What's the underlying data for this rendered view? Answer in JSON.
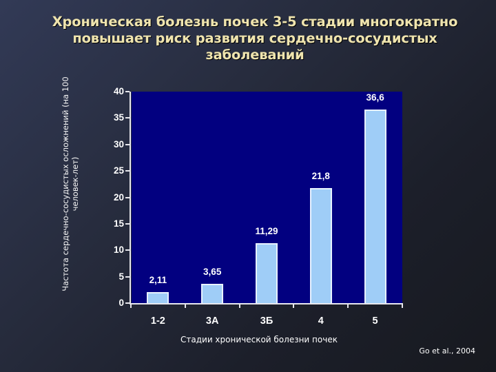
{
  "title": "Хроническая болезнь почек 3-5 стадии многократно повышает риск развития сердечно-сосудистых заболеваний",
  "source": "Go et al., 2004",
  "colors": {
    "title": "#efe4ae",
    "plot_background": "#020080",
    "bar_fill": "#9fcdf7",
    "bar_border": "#e8f2ff"
  },
  "chart_data": {
    "type": "bar",
    "title": "Хроническая болезнь почек 3-5 стадии многократно повышает риск развития сердечно-сосудистых заболеваний",
    "xlabel": "Стадии хронической болезни почек",
    "ylabel": "Частота сердечно-сосудистых осложнений (на 100 человек-лет)",
    "categories": [
      "1-2",
      "3А",
      "3Б",
      "4",
      "5"
    ],
    "values": [
      2.11,
      3.65,
      11.29,
      21.8,
      36.6
    ],
    "value_labels": [
      "2,11",
      "3,65",
      "11,29",
      "21,8",
      "36,6"
    ],
    "yticks": [
      "0",
      "5",
      "10",
      "15",
      "20",
      "25",
      "30",
      "35",
      "40"
    ],
    "ylim": [
      0,
      40
    ],
    "grid": false,
    "legend": null
  }
}
